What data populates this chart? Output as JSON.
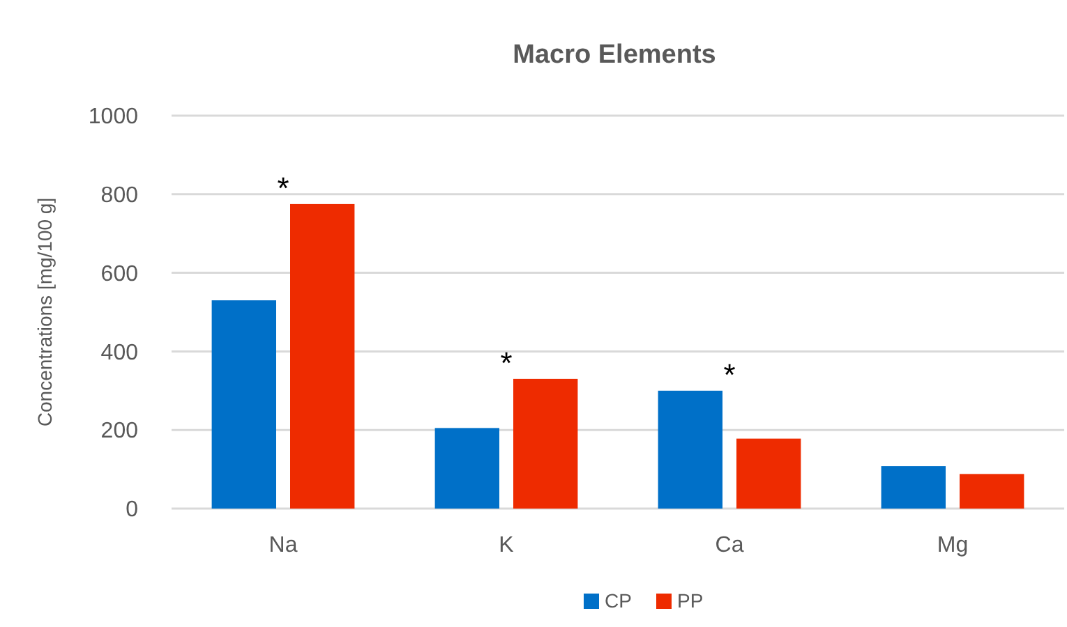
{
  "chart_data": {
    "type": "bar",
    "title": "Macro Elements",
    "ylabel": "Concentrations [mg/100 g]",
    "categories": [
      "Na",
      "K",
      "Ca",
      "Mg"
    ],
    "series": [
      {
        "name": "CP",
        "color": "#0070c8",
        "values": [
          530,
          205,
          300,
          108
        ]
      },
      {
        "name": "PP",
        "color": "#ee2b00",
        "values": [
          775,
          330,
          178,
          88
        ]
      }
    ],
    "ylim": [
      0,
      1000
    ],
    "yticks": [
      0,
      200,
      400,
      600,
      800,
      1000
    ],
    "grid": "y",
    "legend": "bottom",
    "annotations": [
      {
        "text": "*",
        "x": "Na",
        "y": 775
      },
      {
        "text": "*",
        "x": "K",
        "y": 330
      },
      {
        "text": "*",
        "x": "Ca",
        "y": 300
      }
    ]
  }
}
